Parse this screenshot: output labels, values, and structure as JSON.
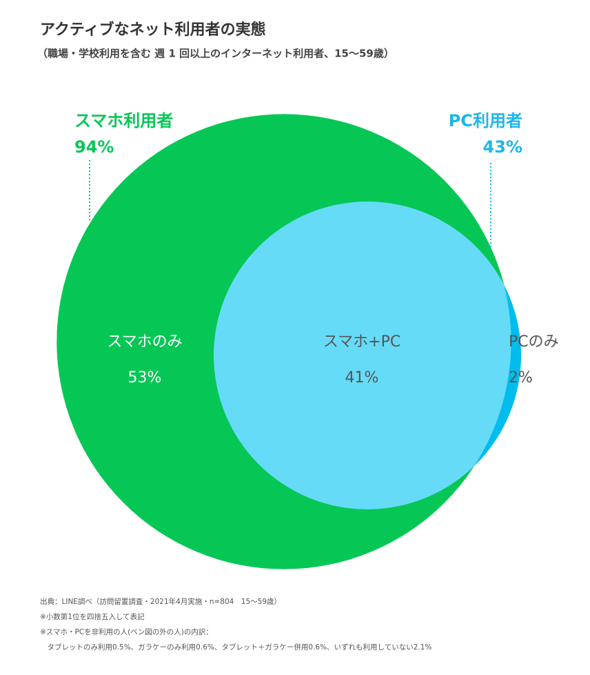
{
  "chart_data": {
    "type": "venn",
    "title": "アクティブなネット利用者の実態",
    "subtitle": "（職場・学校利用を含む 週 1 回以上のインターネット利用者、15〜59歳）",
    "sets": [
      {
        "name": "スマホ利用者",
        "value": 94,
        "value_label": "94%",
        "color": "#06c755"
      },
      {
        "name": "PC利用者",
        "value": 43,
        "value_label": "43%",
        "color": "#00bdee"
      }
    ],
    "regions": {
      "categories": [
        "スマホのみ",
        "スマホ+PC",
        "PCのみ"
      ],
      "values": [
        53,
        41,
        2
      ],
      "value_labels": [
        "53%",
        "41%",
        "2%"
      ],
      "colors": [
        "#06c755",
        "#66dbf7",
        "#00bdee"
      ]
    },
    "notes": [
      "出典：LINE調べ（訪問留置調査・2021年4月実施・n=804　15〜59歳）",
      "※小数第1位を四捨五入して表記",
      "※スマホ・PCを非利用の人(ベン図の外の人)の内訳：",
      "　タブレットのみ利用0.5%、ガラケーのみ利用0.6%、タブレット＋ガラケー併用0.6%、いずれも利用していない2.1%"
    ]
  }
}
